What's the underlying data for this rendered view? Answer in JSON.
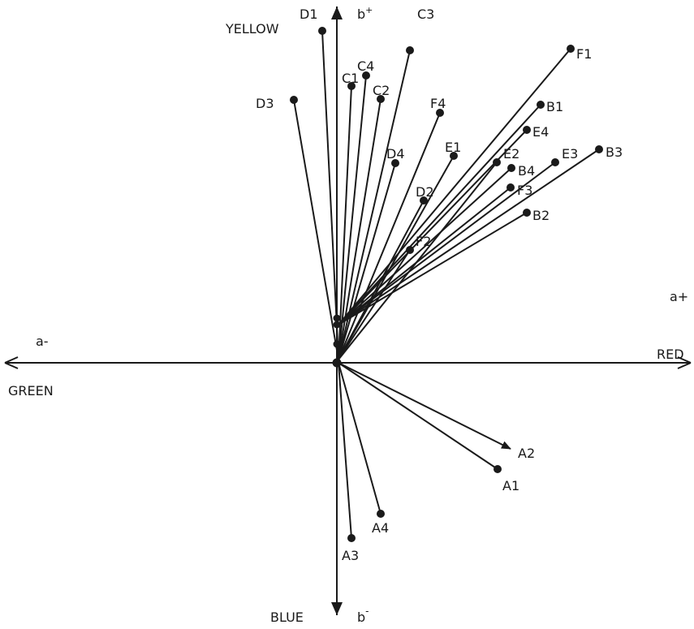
{
  "axes": {
    "yellow": "YELLOW",
    "b_plus_base": "b",
    "b_plus_sup": "+",
    "a_minus": "a-",
    "a_plus": "a+",
    "green": "GREEN",
    "red": "RED",
    "blue": "BLUE",
    "b_minus_base": "b",
    "b_minus_sup": "-"
  },
  "vectors": [
    {
      "label": "D1"
    },
    {
      "label": "C3"
    },
    {
      "label": "F1"
    },
    {
      "label": "C4"
    },
    {
      "label": "C1"
    },
    {
      "label": "C2"
    },
    {
      "label": "D3"
    },
    {
      "label": "F4"
    },
    {
      "label": "B1"
    },
    {
      "label": "E4"
    },
    {
      "label": "E1"
    },
    {
      "label": "D4"
    },
    {
      "label": "E2"
    },
    {
      "label": "B4"
    },
    {
      "label": "E3"
    },
    {
      "label": "B3"
    },
    {
      "label": "F3"
    },
    {
      "label": "D2"
    },
    {
      "label": "B2"
    },
    {
      "label": "F2"
    },
    {
      "label": "A2"
    },
    {
      "label": "A1"
    },
    {
      "label": "A4"
    },
    {
      "label": "A3"
    }
  ],
  "colors": {
    "ink": "#1a1a1a",
    "background": "#ffffff"
  }
}
